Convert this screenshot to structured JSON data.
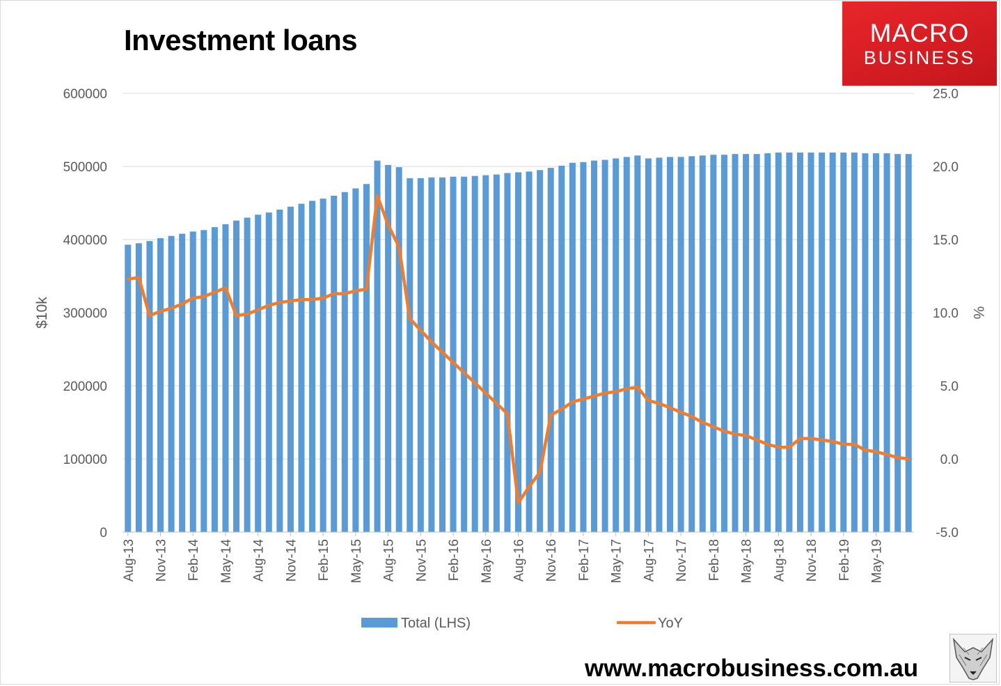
{
  "title": "Investment loans",
  "logo": {
    "line1": "MACRO",
    "line2": "BUSINESS"
  },
  "website": "www.macrobusiness.com.au",
  "icons": {
    "logo": "macro-business-logo",
    "mascot": "wolf-mascot-icon"
  },
  "chart_data": {
    "type": "bar",
    "title": "Investment loans",
    "ylabel_left": "$10k",
    "ylabel_right": "%",
    "ylim_left": [
      0,
      600000
    ],
    "ylim_right": [
      -5,
      25
    ],
    "yticks_left": [
      "0",
      "100000",
      "200000",
      "300000",
      "400000",
      "500000",
      "600000"
    ],
    "yticks_right": [
      "-5.0",
      "0.0",
      "5.0",
      "10.0",
      "15.0",
      "20.0",
      "25.0"
    ],
    "xtick_labels": [
      "Aug-13",
      "Nov-13",
      "Feb-14",
      "May-14",
      "Aug-14",
      "Nov-14",
      "Feb-15",
      "May-15",
      "Aug-15",
      "Nov-15",
      "Feb-16",
      "May-16",
      "Aug-16",
      "Nov-16",
      "Feb-17",
      "May-17",
      "Aug-17",
      "Nov-17",
      "Feb-18",
      "May-18",
      "Aug-18",
      "Nov-18",
      "Feb-19",
      "May-19"
    ],
    "legend_position": "bottom",
    "gridlines": true,
    "colors": {
      "bars": "#5b9bd5",
      "line": "#ed7d31",
      "grid": "#d9d9d9"
    },
    "series": [
      {
        "name": "Total (LHS)",
        "type": "bar",
        "axis": "left",
        "values": [
          393000,
          395000,
          398000,
          402000,
          405000,
          408000,
          411000,
          413000,
          417000,
          421000,
          426000,
          430000,
          434000,
          437000,
          441000,
          445000,
          449000,
          453000,
          456000,
          460000,
          465000,
          470000,
          476000,
          508000,
          502000,
          499000,
          484000,
          484000,
          485000,
          485000,
          486000,
          486000,
          487000,
          488000,
          489000,
          491000,
          492000,
          493000,
          495000,
          498000,
          501000,
          505000,
          506000,
          508000,
          509000,
          511000,
          513000,
          515000,
          511000,
          512000,
          513000,
          513000,
          514000,
          515000,
          516000,
          516000,
          517000,
          517000,
          517000,
          518000,
          519000,
          519000,
          519000,
          519000,
          519000,
          519000,
          519000,
          519000,
          518000,
          518000,
          518000,
          517000,
          517000
        ]
      },
      {
        "name": "YoY",
        "type": "line",
        "axis": "right",
        "values": [
          12.3,
          12.4,
          9.8,
          10.1,
          10.3,
          10.6,
          11.0,
          11.1,
          11.4,
          11.7,
          9.8,
          9.9,
          10.2,
          10.5,
          10.7,
          10.8,
          10.9,
          10.9,
          11.0,
          11.3,
          11.3,
          11.5,
          11.6,
          18.0,
          16.0,
          14.5,
          9.6,
          8.8,
          8.0,
          7.3,
          6.6,
          5.9,
          5.2,
          4.5,
          3.8,
          3.1,
          -3.0,
          -1.9,
          -0.9,
          3.0,
          3.4,
          3.9,
          4.1,
          4.3,
          4.5,
          4.6,
          4.8,
          4.9,
          4.0,
          3.8,
          3.5,
          3.2,
          2.9,
          2.5,
          2.2,
          1.9,
          1.7,
          1.6,
          1.3,
          1.0,
          0.8,
          0.8,
          1.4,
          1.4,
          1.3,
          1.2,
          1.0,
          1.0,
          0.6,
          0.5,
          0.3,
          0.1,
          0.0
        ]
      }
    ]
  }
}
